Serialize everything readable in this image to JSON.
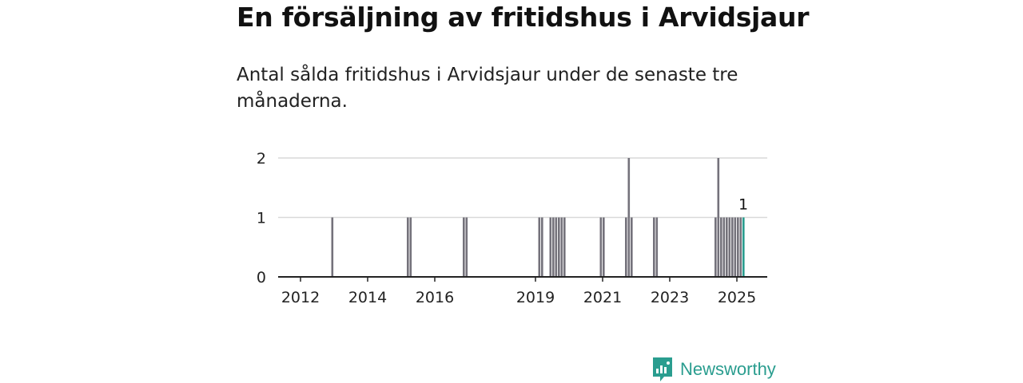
{
  "header": {
    "title": "En försäljning av fritidshus i Arvidsjaur",
    "subtitle": "Antal sålda fritidshus i Arvidsjaur under de senaste tre månaderna."
  },
  "brand": {
    "name": "Newsworthy",
    "color": "#2a9d8f",
    "icon": "newsworthy-logo-icon"
  },
  "colors": {
    "bar": "#74727b",
    "highlight": "#2a9d8f",
    "grid": "#d9d9d9",
    "axis": "#222222"
  },
  "chart_data": {
    "type": "bar",
    "title": "En försäljning av fritidshus i Arvidsjaur",
    "ylim": [
      0,
      2
    ],
    "yticks": [
      "0",
      "1",
      "2"
    ],
    "xticks": [
      "2012",
      "2014",
      "2016",
      "2019",
      "2021",
      "2023",
      "2025"
    ],
    "grid": true,
    "highlight_label": "1",
    "series": [
      {
        "values": [
          {
            "x": "2012-12",
            "y": 1
          },
          {
            "x": "2015-03",
            "y": 1
          },
          {
            "x": "2015-04",
            "y": 1
          },
          {
            "x": "2016-11",
            "y": 1
          },
          {
            "x": "2016-12",
            "y": 1
          },
          {
            "x": "2019-02",
            "y": 1
          },
          {
            "x": "2019-03",
            "y": 1
          },
          {
            "x": "2019-06",
            "y": 1
          },
          {
            "x": "2019-07",
            "y": 1
          },
          {
            "x": "2019-08",
            "y": 1
          },
          {
            "x": "2019-09",
            "y": 1
          },
          {
            "x": "2019-10",
            "y": 1
          },
          {
            "x": "2019-11",
            "y": 1
          },
          {
            "x": "2020-12",
            "y": 1
          },
          {
            "x": "2021-01",
            "y": 1
          },
          {
            "x": "2021-09",
            "y": 1
          },
          {
            "x": "2021-10",
            "y": 2
          },
          {
            "x": "2021-11",
            "y": 1
          },
          {
            "x": "2022-07",
            "y": 1
          },
          {
            "x": "2022-08",
            "y": 1
          },
          {
            "x": "2024-05",
            "y": 1
          },
          {
            "x": "2024-06",
            "y": 2
          },
          {
            "x": "2024-07",
            "y": 1
          },
          {
            "x": "2024-08",
            "y": 1
          },
          {
            "x": "2024-09",
            "y": 1
          },
          {
            "x": "2024-10",
            "y": 1
          },
          {
            "x": "2024-11",
            "y": 1
          },
          {
            "x": "2024-12",
            "y": 1
          },
          {
            "x": "2025-01",
            "y": 1
          },
          {
            "x": "2025-02",
            "y": 1
          },
          {
            "x": "2025-03",
            "y": 1
          }
        ]
      }
    ]
  }
}
